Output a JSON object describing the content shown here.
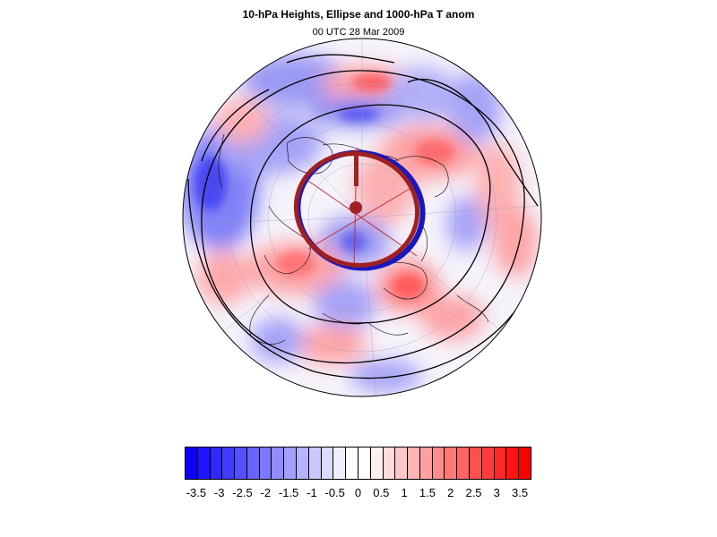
{
  "title": "10-hPa Heights, Ellipse and 1000-hPa T anom",
  "subtitle": "00 UTC 28 Mar 2009",
  "map": {
    "projection": "polar-stereographic",
    "hemisphere": "northern",
    "field": "1000-hPa T anom",
    "contours": "10-hPa Heights",
    "overlay": "Ellipse",
    "ellipse_color": "#a02020",
    "ellipse_edge_color": "#1010c0"
  },
  "colorbar": {
    "min": -3.75,
    "max": 3.75,
    "step": 0.25,
    "label_values": [
      "-3.5",
      "-3",
      "-2.5",
      "-2",
      "-1.5",
      "-1",
      "-0.5",
      "0",
      "0.5",
      "1",
      "1.5",
      "2",
      "2.5",
      "3",
      "3.5"
    ],
    "colors": [
      "#0a00ff",
      "#1e14ff",
      "#2f28ff",
      "#413cff",
      "#5550ff",
      "#6964ff",
      "#7c78ff",
      "#908cff",
      "#a3a0ff",
      "#b6b4ff",
      "#c9c8ff",
      "#dcdcff",
      "#efeeff",
      "#ffffff",
      "#ffffff",
      "#fff0f0",
      "#ffdcdc",
      "#ffc8c8",
      "#ffb4b4",
      "#ffa0a0",
      "#ff8c8c",
      "#ff7878",
      "#ff6464",
      "#ff5050",
      "#ff3c3c",
      "#ff2828",
      "#ff1414",
      "#ff0000"
    ]
  }
}
